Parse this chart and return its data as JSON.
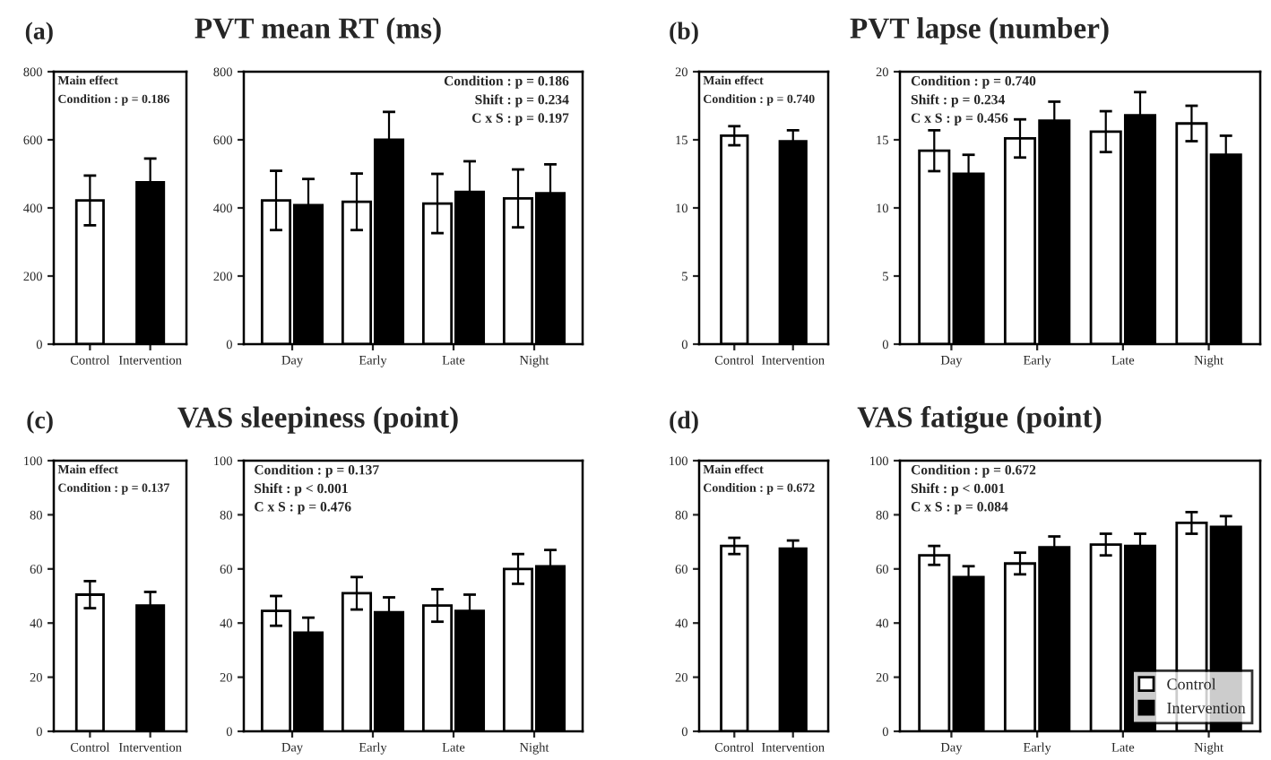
{
  "chart_data": [
    {
      "type": "bar",
      "title": "(a)",
      "categories": [
        "Control",
        "Intervention"
      ],
      "values": [
        422,
        475
      ],
      "errors": [
        73,
        70
      ],
      "colors": [
        "#ffffff",
        "#000000"
      ],
      "ylim": [
        0,
        800
      ],
      "yticks": [
        0,
        200,
        400,
        600,
        800
      ],
      "grid": false,
      "legend": false,
      "annotations": [
        "Main effect",
        "Condition : p = 0.186"
      ]
    },
    {
      "type": "bar",
      "title": "PVT mean RT (ms)",
      "categories": [
        "Day",
        "Early",
        "Late",
        "Night"
      ],
      "ylim": [
        0,
        800
      ],
      "yticks": [
        0,
        200,
        400,
        600,
        800
      ],
      "grid": false,
      "legend": false,
      "series": [
        {
          "color": "#ffffff",
          "values": [
            422,
            418,
            413,
            428
          ],
          "errors": [
            87,
            83,
            87,
            85
          ]
        },
        {
          "color": "#000000",
          "values": [
            408,
            600,
            447,
            443
          ],
          "errors": [
            77,
            82,
            90,
            85
          ]
        }
      ],
      "annotations": [
        "Condition : p = 0.186",
        "Shift : p = 0.234",
        "C x S : p = 0.197"
      ]
    },
    {
      "type": "bar",
      "title": "(b)",
      "categories": [
        "Control",
        "Intervention"
      ],
      "values": [
        15.3,
        14.9
      ],
      "errors": [
        0.7,
        0.8
      ],
      "colors": [
        "#ffffff",
        "#000000"
      ],
      "ylim": [
        0,
        20
      ],
      "yticks": [
        0,
        5,
        10,
        15,
        20
      ],
      "grid": false,
      "legend": false,
      "annotations": [
        "Main effect",
        "Condition : p = 0.740"
      ]
    },
    {
      "type": "bar",
      "title": "PVT lapse (number)",
      "categories": [
        "Day",
        "Early",
        "Late",
        "Night"
      ],
      "ylim": [
        0,
        20
      ],
      "yticks": [
        0,
        5,
        10,
        15,
        20
      ],
      "grid": false,
      "legend": false,
      "series": [
        {
          "color": "#ffffff",
          "values": [
            14.2,
            15.1,
            15.6,
            16.2
          ],
          "errors": [
            1.5,
            1.4,
            1.5,
            1.3
          ]
        },
        {
          "color": "#000000",
          "values": [
            12.5,
            16.4,
            16.8,
            13.9
          ],
          "errors": [
            1.4,
            1.4,
            1.7,
            1.4
          ]
        }
      ],
      "annotations": [
        "Condition : p = 0.740",
        "Shift : p = 0.234",
        "C x S : p = 0.456"
      ]
    },
    {
      "type": "bar",
      "title": "(c)",
      "categories": [
        "Control",
        "Intervention"
      ],
      "values": [
        50.5,
        46.5
      ],
      "errors": [
        5,
        5
      ],
      "colors": [
        "#ffffff",
        "#000000"
      ],
      "ylim": [
        0,
        100
      ],
      "yticks": [
        0,
        20,
        40,
        60,
        80,
        100
      ],
      "grid": false,
      "legend": false,
      "annotations": [
        "Main effect",
        "Condition : p = 0.137"
      ]
    },
    {
      "type": "bar",
      "title": "VAS sleepiness (point)",
      "categories": [
        "Day",
        "Early",
        "Late",
        "Night"
      ],
      "ylim": [
        0,
        100
      ],
      "yticks": [
        0,
        20,
        40,
        60,
        80,
        100
      ],
      "grid": false,
      "legend": false,
      "series": [
        {
          "color": "#ffffff",
          "values": [
            44.5,
            51,
            46.5,
            60
          ],
          "errors": [
            5.5,
            6,
            6,
            5.5
          ]
        },
        {
          "color": "#000000",
          "values": [
            36.5,
            44,
            44.5,
            61
          ],
          "errors": [
            5.5,
            5.5,
            6,
            6
          ]
        }
      ],
      "annotations": [
        "Condition : p = 0.137",
        "Shift : p < 0.001",
        "C x S : p = 0.476"
      ]
    },
    {
      "type": "bar",
      "title": "(d)",
      "categories": [
        "Control",
        "Intervention"
      ],
      "values": [
        68.5,
        67.5
      ],
      "errors": [
        3,
        3
      ],
      "colors": [
        "#ffffff",
        "#000000"
      ],
      "ylim": [
        0,
        100
      ],
      "yticks": [
        0,
        20,
        40,
        60,
        80,
        100
      ],
      "grid": false,
      "legend": false,
      "annotations": [
        "Main effect",
        "Condition : p = 0.672"
      ]
    },
    {
      "type": "bar",
      "title": "VAS fatigue (point)",
      "categories": [
        "Day",
        "Early",
        "Late",
        "Night"
      ],
      "ylim": [
        0,
        100
      ],
      "yticks": [
        0,
        20,
        40,
        60,
        80,
        100
      ],
      "grid": false,
      "legend": "bottom right",
      "series": [
        {
          "name": "Control",
          "color": "#ffffff",
          "values": [
            65,
            62,
            69,
            77
          ],
          "errors": [
            3.5,
            4,
            4,
            4
          ]
        },
        {
          "name": "Intervention",
          "color": "#000000",
          "values": [
            57,
            68,
            68.5,
            75.5
          ],
          "errors": [
            4,
            4,
            4.5,
            4
          ]
        }
      ],
      "annotations": [
        "Condition : p = 0.672",
        "Shift : p < 0.001",
        "C x S : p = 0.084"
      ]
    }
  ]
}
